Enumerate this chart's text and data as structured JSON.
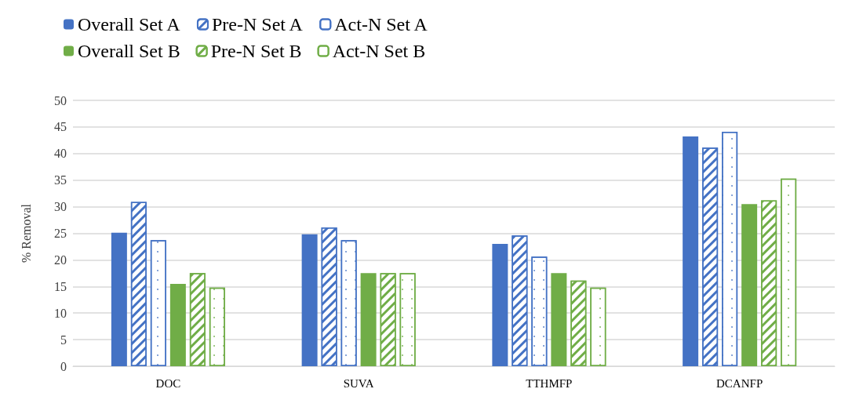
{
  "chart_data": {
    "type": "bar",
    "ylabel": "% Removal",
    "categories": [
      "DOC",
      "SUVA",
      "TTHMFP",
      "DCANFP"
    ],
    "series": [
      {
        "name": "Overall Set A",
        "color": "#4472c4",
        "values": [
          25.1,
          24.8,
          23.0,
          43.2
        ]
      },
      {
        "name": "Pre-N Set A",
        "color": "#4472c4",
        "values": [
          30.9,
          26.1,
          24.6,
          41.1
        ]
      },
      {
        "name": "Act-N Set A",
        "color": "#4472c4",
        "values": [
          23.7,
          23.7,
          20.6,
          44.1
        ]
      },
      {
        "name": "Overall Set B",
        "color": "#70ad47",
        "values": [
          15.5,
          17.5,
          17.5,
          30.5
        ]
      },
      {
        "name": "Pre-N Set B",
        "color": "#70ad47",
        "values": [
          17.5,
          17.5,
          16.1,
          31.2
        ]
      },
      {
        "name": "Act-N Set B",
        "color": "#70ad47",
        "values": [
          14.8,
          17.5,
          14.8,
          35.3
        ]
      }
    ],
    "ylim": [
      0,
      50
    ],
    "yticks": [
      0,
      5,
      10,
      15,
      20,
      25,
      30,
      35,
      40,
      45,
      50
    ],
    "grid": "y",
    "legend": "top"
  }
}
